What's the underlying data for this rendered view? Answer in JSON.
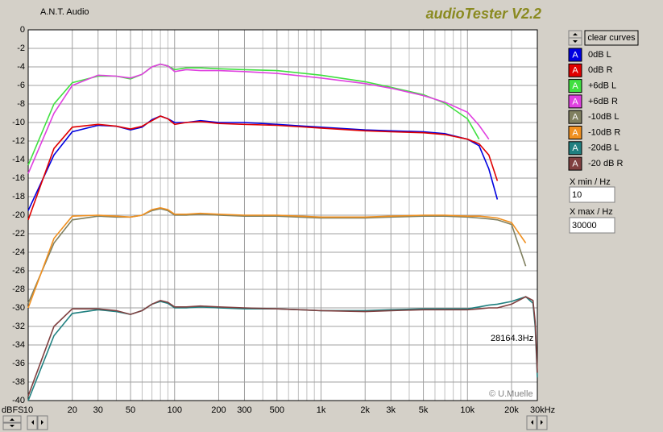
{
  "chart_data": {
    "type": "line",
    "brand": "A.N.T. Audio",
    "title": "audioTester V2.2",
    "ylabel": "dBFS",
    "annotation": "28164.3Hz",
    "credit": "© U.Muelle",
    "log_x": true,
    "grid": true,
    "xlim": [
      10,
      30000
    ],
    "ylim": [
      -40,
      0
    ],
    "xticks": [
      10,
      20,
      30,
      50,
      100,
      200,
      300,
      500,
      {
        "value": 1000,
        "label": "1k"
      },
      {
        "value": 2000,
        "label": "2k"
      },
      {
        "value": 3000,
        "label": "3k"
      },
      {
        "value": 5000,
        "label": "5k"
      },
      {
        "value": 10000,
        "label": "10k"
      },
      {
        "value": 20000,
        "label": "20k"
      },
      {
        "value": 30000,
        "label": "30kHz"
      }
    ],
    "xminorticks": [
      40,
      60,
      70,
      80,
      90,
      400,
      600,
      700,
      800,
      900,
      4000,
      6000,
      7000,
      8000,
      9000
    ],
    "yticks": [
      0,
      -2,
      -4,
      -6,
      -8,
      -10,
      -12,
      -14,
      -16,
      -18,
      -20,
      -22,
      -24,
      -26,
      -28,
      -30,
      -32,
      -34,
      -36,
      -38,
      -40
    ],
    "legend_glyph": "A",
    "x": [
      10,
      15,
      20,
      30,
      40,
      50,
      60,
      70,
      80,
      90,
      100,
      120,
      150,
      200,
      300,
      500,
      1000,
      2000,
      3000,
      5000,
      7000,
      10000,
      12000,
      14000,
      16000,
      20000,
      25000,
      28000,
      29000,
      30000
    ],
    "series": [
      {
        "name": "0dB L",
        "color": "#0000e0",
        "values": [
          -19.5,
          -13.5,
          -11,
          -10.3,
          -10.4,
          -10.8,
          -10.5,
          -9.7,
          -9.3,
          -9.6,
          -10,
          -10,
          -9.8,
          -10,
          -10,
          -10.2,
          -10.5,
          -10.8,
          -10.9,
          -11,
          -11.2,
          -11.8,
          -12.5,
          -15,
          -18.3,
          null,
          null,
          null,
          null,
          null
        ]
      },
      {
        "name": "0dB R",
        "color": "#e00000",
        "values": [
          -20.5,
          -12.8,
          -10.5,
          -10.2,
          -10.4,
          -10.7,
          -10.4,
          -9.8,
          -9.3,
          -9.6,
          -10.2,
          -10,
          -9.9,
          -10.1,
          -10.2,
          -10.3,
          -10.6,
          -10.9,
          -11,
          -11.1,
          -11.3,
          -11.8,
          -12.3,
          -13.5,
          -16.3,
          null,
          null,
          null,
          null,
          null
        ]
      },
      {
        "name": "+6dB L",
        "color": "#40e040",
        "values": [
          -14.6,
          -8,
          -5.7,
          -5,
          -5,
          -5.3,
          -4.8,
          -4,
          -3.7,
          -3.9,
          -4.3,
          -4.1,
          -4.1,
          -4.2,
          -4.3,
          -4.4,
          -4.9,
          -5.6,
          -6.2,
          -7,
          -7.9,
          -9.6,
          -11.8,
          null,
          null,
          null,
          null,
          null,
          null,
          null
        ]
      },
      {
        "name": "+6dB R",
        "color": "#e040e0",
        "values": [
          -15.5,
          -9,
          -6,
          -4.9,
          -5,
          -5.2,
          -4.8,
          -4,
          -3.7,
          -3.9,
          -4.5,
          -4.3,
          -4.4,
          -4.4,
          -4.5,
          -4.7,
          -5.2,
          -5.8,
          -6.3,
          -7.1,
          -7.8,
          -8.9,
          -10.3,
          -11.8,
          null,
          null,
          null,
          null,
          null,
          null
        ]
      },
      {
        "name": "-10dB L",
        "color": "#808060",
        "values": [
          -29.5,
          -23,
          -20.5,
          -20.1,
          -20.2,
          -20.2,
          -20,
          -19.5,
          -19.3,
          -19.5,
          -20,
          -20,
          -19.9,
          -20,
          -20.1,
          -20.1,
          -20.3,
          -20.3,
          -20.2,
          -20.1,
          -20.1,
          -20.2,
          -20.3,
          -20.4,
          -20.5,
          -21,
          -25.5,
          null,
          null,
          null
        ]
      },
      {
        "name": "-10dB R",
        "color": "#f09020",
        "values": [
          -30,
          -22.5,
          -20.1,
          -20,
          -20.1,
          -20.2,
          -20,
          -19.4,
          -19.2,
          -19.4,
          -19.9,
          -19.9,
          -19.8,
          -19.9,
          -20,
          -20,
          -20.2,
          -20.2,
          -20.1,
          -20,
          -20,
          -20.1,
          -20.1,
          -20.2,
          -20.3,
          -20.8,
          -23,
          null,
          null,
          null
        ]
      },
      {
        "name": "-20dB L",
        "color": "#208080",
        "values": [
          -40,
          -33,
          -30.6,
          -30.2,
          -30.4,
          -30.7,
          -30.3,
          -29.6,
          -29.3,
          -29.5,
          -30,
          -30,
          -29.9,
          -30,
          -30.1,
          -30.1,
          -30.3,
          -30.3,
          -30.2,
          -30.1,
          -30.1,
          -30.1,
          -29.9,
          -29.7,
          -29.6,
          -29.3,
          -28.8,
          -29.5,
          -32,
          -37.5
        ]
      },
      {
        "name": "-20 dB R",
        "color": "#804040",
        "values": [
          -39.5,
          -32,
          -30.1,
          -30.1,
          -30.3,
          -30.7,
          -30.3,
          -29.6,
          -29.2,
          -29.4,
          -29.9,
          -29.9,
          -29.8,
          -29.9,
          -30,
          -30.1,
          -30.3,
          -30.4,
          -30.3,
          -30.2,
          -30.2,
          -30.2,
          -30.1,
          -30,
          -30,
          -29.6,
          -28.8,
          -29.2,
          -31.5,
          -37
        ]
      }
    ]
  },
  "controls": {
    "clear_button": "clear curves",
    "xmin_label": "X min / Hz",
    "xmin_value": "10",
    "xmax_label": "X max / Hz",
    "xmax_value": "30000"
  }
}
